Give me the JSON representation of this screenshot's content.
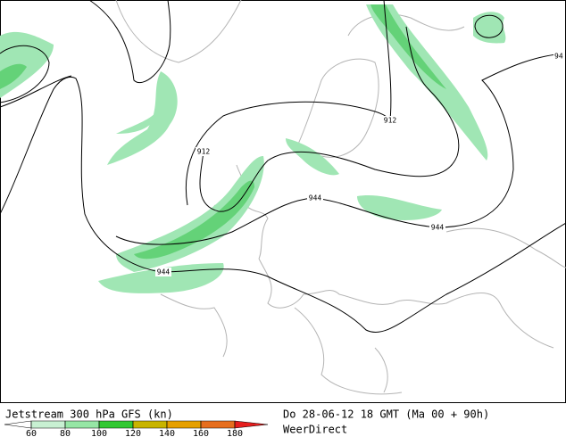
{
  "map": {
    "contour_labels": [
      "912",
      "912",
      "944",
      "944",
      "944",
      "94"
    ]
  },
  "footer": {
    "title": "Jetstream 300 hPa GFS (kn)",
    "valid_time": "Do 28-06-12 18 GMT (Ma 00 + 90h)",
    "source": "WeerDirect"
  },
  "legend": {
    "ticks": [
      60,
      80,
      100,
      120,
      140,
      160,
      180
    ],
    "colors": [
      "#ffffff",
      "#c8f0d2",
      "#96e6a5",
      "#32c832",
      "#c8b400",
      "#e6a000",
      "#e66e1e",
      "#e61e1e"
    ]
  }
}
